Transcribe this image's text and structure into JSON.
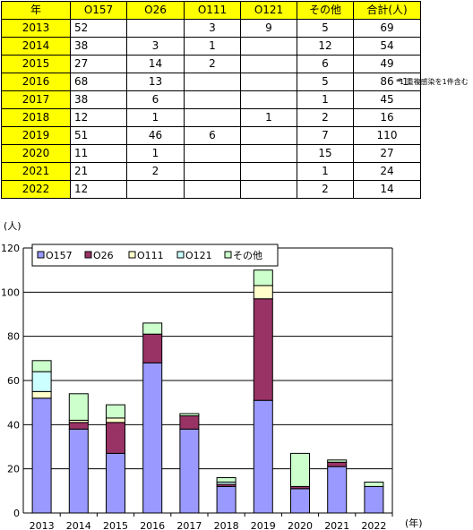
{
  "table": {
    "headers": [
      "年",
      "O157",
      "O26",
      "O111",
      "O121",
      "その他",
      "合計(人)"
    ],
    "rows": [
      {
        "year": "2013",
        "o157": "52",
        "o26": "",
        "o111": "3",
        "o121": "9",
        "other": "5",
        "total": "69",
        "total_mark": ""
      },
      {
        "year": "2014",
        "o157": "38",
        "o26": "3",
        "o111": "1",
        "o121": "",
        "other": "12",
        "total": "54",
        "total_mark": ""
      },
      {
        "year": "2015",
        "o157": "27",
        "o26": "14",
        "o111": "2",
        "o121": "",
        "other": "6",
        "total": "49",
        "total_mark": ""
      },
      {
        "year": "2016",
        "o157": "68",
        "o26": "13",
        "o111": "",
        "o121": "",
        "other": "5",
        "total": "86",
        "total_mark": "*1"
      },
      {
        "year": "2017",
        "o157": "38",
        "o26": "6",
        "o111": "",
        "o121": "",
        "other": "1",
        "total": "45",
        "total_mark": ""
      },
      {
        "year": "2018",
        "o157": "12",
        "o26": "1",
        "o111": "",
        "o121": "1",
        "other": "2",
        "total": "16",
        "total_mark": ""
      },
      {
        "year": "2019",
        "o157": "51",
        "o26": "46",
        "o111": "6",
        "o121": "",
        "other": "7",
        "total": "110",
        "total_mark": ""
      },
      {
        "year": "2020",
        "o157": "11",
        "o26": "1",
        "o111": "",
        "o121": "",
        "other": "15",
        "total": "27",
        "total_mark": ""
      },
      {
        "year": "2021",
        "o157": "21",
        "o26": "2",
        "o111": "",
        "o121": "",
        "other": "1",
        "total": "24",
        "total_mark": ""
      },
      {
        "year": "2022",
        "o157": "12",
        "o26": "",
        "o111": "",
        "o121": "",
        "other": "2",
        "total": "14",
        "total_mark": ""
      }
    ],
    "footnote": "*1 重複感染を1件含む"
  },
  "chart_data": {
    "type": "bar",
    "stacked": true,
    "categories": [
      "2013",
      "2014",
      "2015",
      "2016",
      "2017",
      "2018",
      "2019",
      "2020",
      "2021",
      "2022"
    ],
    "series": [
      {
        "name": "O157",
        "color": "#9999ff",
        "values": [
          52,
          38,
          27,
          68,
          38,
          12,
          51,
          11,
          21,
          12
        ]
      },
      {
        "name": "O26",
        "color": "#993366",
        "values": [
          0,
          3,
          14,
          13,
          6,
          1,
          46,
          1,
          2,
          0
        ]
      },
      {
        "name": "O111",
        "color": "#ffffcc",
        "values": [
          3,
          1,
          2,
          0,
          0,
          0,
          6,
          0,
          0,
          0
        ]
      },
      {
        "name": "O121",
        "color": "#ccffff",
        "values": [
          9,
          0,
          0,
          0,
          0,
          1,
          0,
          0,
          0,
          0
        ]
      },
      {
        "name": "その他",
        "color": "#ccffcc",
        "values": [
          5,
          12,
          6,
          5,
          1,
          2,
          7,
          15,
          1,
          2
        ]
      }
    ],
    "ylabel": "(人)",
    "xlabel": "(年)",
    "ylim": [
      0,
      120
    ],
    "yticks": [
      0,
      20,
      40,
      60,
      80,
      100,
      120
    ],
    "grid": true,
    "legend_position": "top-left"
  }
}
